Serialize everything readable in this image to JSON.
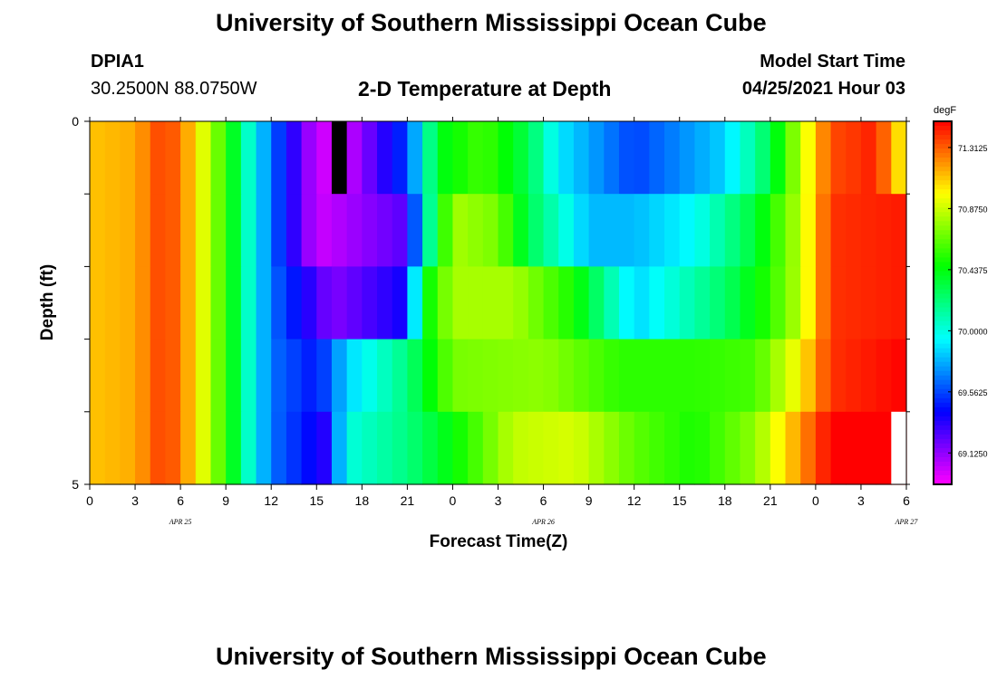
{
  "page": {
    "title_top": "University of Southern Mississippi Ocean Cube",
    "title_bottom": "University of Southern Mississippi Ocean Cube",
    "station_id": "DPIA1",
    "station_coords": "30.2500N  88.0750W",
    "model_start_label": "Model Start Time",
    "model_start_value": "04/25/2021 Hour 03"
  },
  "chart_data": {
    "type": "heatmap",
    "title": "2-D Temperature at Depth",
    "xlabel": "Forecast Time(Z)",
    "ylabel": "Depth (ft)",
    "unit": "degF",
    "x_tick_labels": [
      "0",
      "3",
      "6",
      "9",
      "12",
      "15",
      "18",
      "21",
      "0",
      "3",
      "6",
      "9",
      "12",
      "15",
      "18",
      "21",
      "0",
      "3",
      "6"
    ],
    "x_date_labels": [
      {
        "label": "APR  25",
        "hour_index": 6
      },
      {
        "label": "APR  26",
        "hour_index": 30
      },
      {
        "label": "APR  27",
        "hour_index": 54
      }
    ],
    "y_tick_labels": [
      "0",
      "5"
    ],
    "depth_range": [
      0,
      5
    ],
    "hours": 54,
    "depth_rows": 5,
    "colorbar_ticks": [
      "71.3125",
      "70.8750",
      "70.4375",
      "70.0000",
      "69.5625",
      "69.1250"
    ],
    "colorbar_range": [
      68.9,
      71.5
    ],
    "row_breakpoints": [
      [
        [
          0,
          71.1
        ],
        [
          3,
          71.15
        ],
        [
          5,
          71.4
        ],
        [
          6.5,
          71.15
        ],
        [
          8,
          70.8
        ],
        [
          9,
          70.55
        ],
        [
          10.5,
          70.05
        ],
        [
          12,
          69.65
        ],
        [
          15,
          69.0
        ],
        [
          17,
          69.0
        ],
        [
          21,
          69.55
        ],
        [
          23,
          70.4
        ],
        [
          26,
          70.6
        ],
        [
          29,
          70.3
        ],
        [
          31,
          69.9
        ],
        [
          36,
          69.55
        ],
        [
          42,
          69.85
        ],
        [
          45,
          70.3
        ],
        [
          47,
          70.85
        ],
        [
          49,
          71.35
        ],
        [
          51,
          71.4
        ],
        [
          52,
          71.45
        ],
        [
          53,
          71.15
        ],
        [
          54,
          70.95
        ]
      ],
      [
        [
          0,
          71.1
        ],
        [
          3,
          71.15
        ],
        [
          5,
          71.4
        ],
        [
          6.5,
          71.15
        ],
        [
          8,
          70.8
        ],
        [
          9,
          70.55
        ],
        [
          10.5,
          70.05
        ],
        [
          12,
          69.65
        ],
        [
          15,
          69.0
        ],
        [
          21,
          69.25
        ],
        [
          22,
          69.95
        ],
        [
          24,
          70.8
        ],
        [
          27,
          70.7
        ],
        [
          29,
          70.3
        ],
        [
          33,
          69.8
        ],
        [
          36,
          69.8
        ],
        [
          40,
          69.95
        ],
        [
          44,
          70.35
        ],
        [
          47,
          70.85
        ],
        [
          49,
          71.4
        ],
        [
          54,
          71.45
        ]
      ],
      [
        [
          0,
          71.1
        ],
        [
          3,
          71.15
        ],
        [
          5,
          71.4
        ],
        [
          6.5,
          71.15
        ],
        [
          8,
          70.8
        ],
        [
          9,
          70.55
        ],
        [
          10.5,
          70.05
        ],
        [
          12,
          69.65
        ],
        [
          16,
          69.15
        ],
        [
          21,
          69.4
        ],
        [
          22,
          70.4
        ],
        [
          24,
          70.8
        ],
        [
          28,
          70.8
        ],
        [
          32,
          70.5
        ],
        [
          36,
          69.85
        ],
        [
          42,
          70.25
        ],
        [
          45,
          70.55
        ],
        [
          47,
          70.85
        ],
        [
          49,
          71.4
        ],
        [
          54,
          71.45
        ]
      ],
      [
        [
          0,
          71.1
        ],
        [
          3,
          71.15
        ],
        [
          5,
          71.4
        ],
        [
          6.5,
          71.15
        ],
        [
          8,
          70.8
        ],
        [
          9,
          70.55
        ],
        [
          10.5,
          70.05
        ],
        [
          12,
          69.65
        ],
        [
          15,
          69.45
        ],
        [
          17,
          69.85
        ],
        [
          21,
          70.2
        ],
        [
          24,
          70.7
        ],
        [
          30,
          70.75
        ],
        [
          35,
          70.55
        ],
        [
          40,
          70.55
        ],
        [
          44,
          70.6
        ],
        [
          47,
          71.0
        ],
        [
          49,
          71.4
        ],
        [
          54,
          71.5
        ]
      ],
      [
        [
          0,
          71.1
        ],
        [
          3,
          71.15
        ],
        [
          5,
          71.4
        ],
        [
          6.5,
          71.15
        ],
        [
          8,
          70.8
        ],
        [
          9,
          70.55
        ],
        [
          10.5,
          70.05
        ],
        [
          12,
          69.65
        ],
        [
          15.5,
          69.35
        ],
        [
          17,
          70.0
        ],
        [
          21,
          70.2
        ],
        [
          24,
          70.45
        ],
        [
          28,
          70.85
        ],
        [
          32,
          70.9
        ],
        [
          36,
          70.65
        ],
        [
          40,
          70.5
        ],
        [
          44,
          70.75
        ],
        [
          47,
          71.2
        ],
        [
          49,
          71.5
        ],
        [
          54,
          71.6
        ]
      ]
    ],
    "marks": [
      {
        "color": "#000000",
        "hour": 16.0,
        "depth_top": 0,
        "depth_bottom": 1
      },
      {
        "color": "#ffffff",
        "hour": 53.0,
        "depth_top": 4,
        "depth_bottom": 5
      }
    ]
  }
}
